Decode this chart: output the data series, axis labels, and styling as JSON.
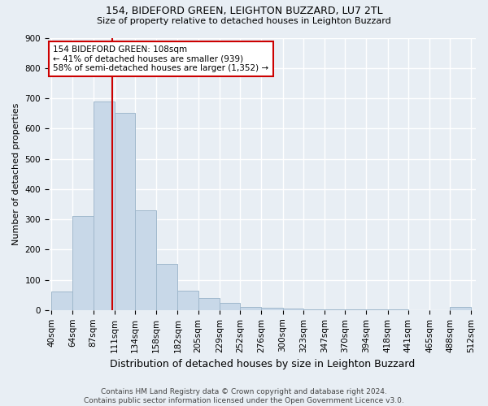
{
  "title": "154, BIDEFORD GREEN, LEIGHTON BUZZARD, LU7 2TL",
  "subtitle": "Size of property relative to detached houses in Leighton Buzzard",
  "xlabel": "Distribution of detached houses by size in Leighton Buzzard",
  "ylabel": "Number of detached properties",
  "footer_line1": "Contains HM Land Registry data © Crown copyright and database right 2024.",
  "footer_line2": "Contains public sector information licensed under the Open Government Licence v3.0.",
  "annotation_line1": "154 BIDEFORD GREEN: 108sqm",
  "annotation_line2": "← 41% of detached houses are smaller (939)",
  "annotation_line3": "58% of semi-detached houses are larger (1,352) →",
  "property_size": 108,
  "bar_edges": [
    40,
    64,
    87,
    111,
    134,
    158,
    182,
    205,
    229,
    252,
    276,
    300,
    323,
    347,
    370,
    394,
    418,
    441,
    465,
    488,
    512
  ],
  "bar_heights": [
    60,
    310,
    688,
    652,
    330,
    152,
    65,
    40,
    25,
    10,
    8,
    5,
    3,
    2,
    2,
    1,
    1,
    0,
    0,
    10
  ],
  "bar_color": "#C8D8E8",
  "bar_edge_color": "#A0B8CC",
  "marker_color": "#CC0000",
  "background_color": "#E8EEF4",
  "grid_color": "#FFFFFF",
  "ylim": [
    0,
    900
  ],
  "yticks": [
    0,
    100,
    200,
    300,
    400,
    500,
    600,
    700,
    800,
    900
  ],
  "annotation_box_color": "#CC0000",
  "annotation_box_facecolor": "#FFFFFF",
  "title_fontsize": 9,
  "subtitle_fontsize": 8,
  "ylabel_fontsize": 8,
  "xlabel_fontsize": 9,
  "tick_fontsize": 7.5,
  "footer_fontsize": 6.5
}
